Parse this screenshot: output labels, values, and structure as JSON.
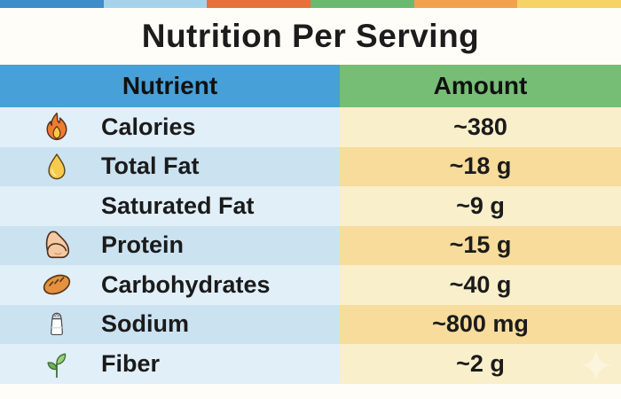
{
  "page": {
    "title": "Nutrition Per Serving"
  },
  "top_bar_colors": [
    "#3d8ec9",
    "#a6d3ec",
    "#e7703c",
    "#69b96e",
    "#f2a24c",
    "#f6d463"
  ],
  "table": {
    "headers": [
      {
        "label": "Nutrient",
        "bg_color": "#47a0d8"
      },
      {
        "label": "Amount",
        "bg_color": "#76bd76"
      }
    ],
    "rows": [
      {
        "icon": "fire-icon",
        "nutrient": "Calories",
        "amount": "~380"
      },
      {
        "icon": "oil-drop-icon",
        "nutrient": "Total Fat",
        "amount": "~18 g"
      },
      {
        "icon": null,
        "nutrient": "Saturated Fat",
        "amount": "~9 g"
      },
      {
        "icon": "bicep-icon",
        "nutrient": "Protein",
        "amount": "~15 g"
      },
      {
        "icon": "bread-icon",
        "nutrient": "Carbohydrates",
        "amount": "~40 g"
      },
      {
        "icon": "salt-shaker-icon",
        "nutrient": "Sodium",
        "amount": "~800 mg"
      },
      {
        "icon": "seedling-icon",
        "nutrient": "Fiber",
        "amount": "~2 g"
      }
    ],
    "stripe_colors": {
      "nutrient_light": "#e1eff9",
      "nutrient_dark": "#cbe2f1",
      "amount_light": "#f9efcb",
      "amount_dark": "#f7dc9c"
    }
  },
  "decorations": {
    "sparkle_color": "#fcf5dd"
  }
}
